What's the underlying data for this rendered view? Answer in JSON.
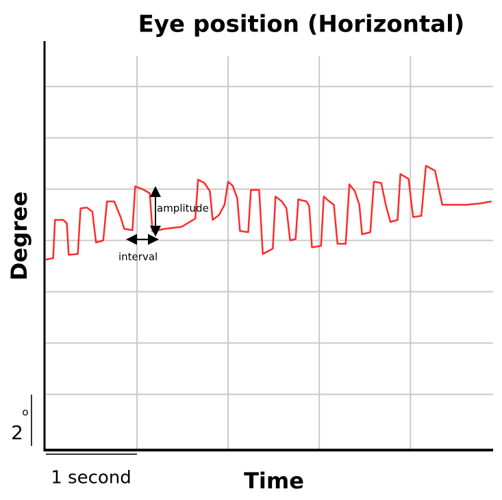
{
  "chart_data": {
    "type": "line",
    "title": "Eye position (Horizontal)",
    "x_label": "Time",
    "y_label": "Degree",
    "annotations": [
      "amplitude",
      "interval"
    ],
    "x_scale_bar_label": "1 second",
    "y_scale_bar_label": "2",
    "y_scale_bar_unit": "o",
    "xlim": [
      0,
      4.9
    ],
    "ylim": [
      -2.2,
      13.8
    ],
    "xgrid": [
      0,
      1,
      2,
      3,
      4
    ],
    "ygrid": [
      0,
      2,
      4,
      6,
      8,
      10,
      12
    ],
    "grid": true,
    "x": [
      0.0,
      0.08,
      0.1,
      0.19,
      0.23,
      0.25,
      0.35,
      0.38,
      0.45,
      0.51,
      0.55,
      0.63,
      0.67,
      0.75,
      0.82,
      0.86,
      0.95,
      0.98,
      1.06,
      1.14,
      1.17,
      1.3,
      1.49,
      1.64,
      1.67,
      1.74,
      1.8,
      1.83,
      1.9,
      1.96,
      2.0,
      2.05,
      2.1,
      2.13,
      2.22,
      2.25,
      2.34,
      2.38,
      2.49,
      2.52,
      2.59,
      2.64,
      2.68,
      2.74,
      2.77,
      2.86,
      2.89,
      2.92,
      3.02,
      3.05,
      3.11,
      3.16,
      3.2,
      3.29,
      3.33,
      3.39,
      3.44,
      3.47,
      3.56,
      3.6,
      3.68,
      3.73,
      3.78,
      3.86,
      3.89,
      3.98,
      4.03,
      4.12,
      4.17,
      4.27,
      4.35,
      4.61,
      4.76,
      4.89
    ],
    "series": [
      {
        "color": "#ff2a2a",
        "values": [
          5.25,
          5.31,
          6.8,
          6.8,
          6.67,
          5.44,
          5.47,
          7.25,
          7.28,
          7.12,
          5.92,
          6.0,
          7.52,
          7.52,
          6.91,
          6.45,
          6.4,
          8.11,
          8.0,
          7.84,
          6.35,
          6.45,
          6.53,
          6.85,
          8.37,
          8.24,
          7.92,
          6.8,
          6.99,
          7.39,
          8.29,
          8.13,
          7.65,
          6.37,
          6.32,
          7.97,
          7.97,
          5.47,
          5.68,
          7.71,
          7.52,
          7.25,
          6.0,
          6.05,
          7.6,
          7.52,
          7.33,
          5.73,
          5.79,
          7.71,
          7.52,
          7.39,
          5.87,
          5.87,
          8.19,
          7.92,
          7.39,
          6.24,
          6.32,
          8.29,
          8.24,
          7.39,
          6.72,
          6.8,
          8.59,
          8.4,
          6.91,
          6.96,
          8.91,
          8.72,
          7.39,
          7.39,
          7.44,
          7.52
        ]
      }
    ]
  }
}
